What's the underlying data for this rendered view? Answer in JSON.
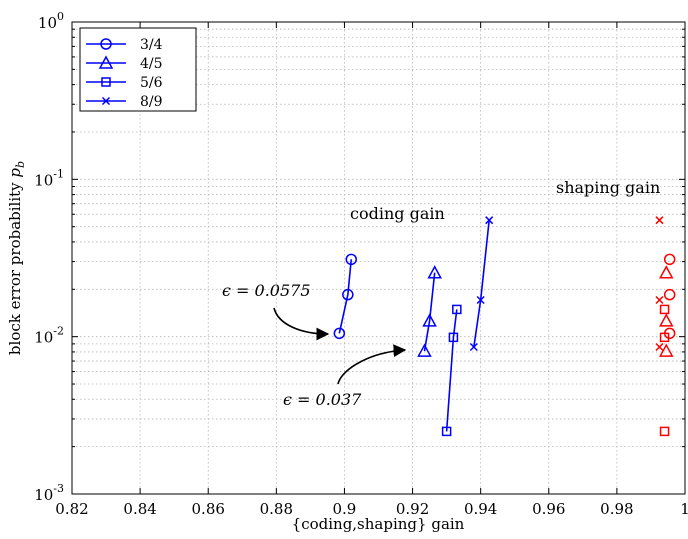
{
  "chart_data": {
    "type": "scatter",
    "title": "",
    "xlabel": "{coding,shaping} gain",
    "ylabel_text": "block error probability ",
    "ylabel_var": "p",
    "ylabel_sub": "b",
    "xlim": [
      0.82,
      1.0
    ],
    "ylim": [
      0.001,
      1
    ],
    "yscale": "log",
    "grid": true,
    "legend_position": "top-left",
    "x_ticks": [
      "0.82",
      "0.84",
      "0.86",
      "0.88",
      "0.9",
      "0.92",
      "0.94",
      "0.96",
      "0.98",
      "1"
    ],
    "y_ticks": [
      {
        "base": "10",
        "exp": "0",
        "value": 1
      },
      {
        "base": "10",
        "exp": "-1",
        "value": 0.1
      },
      {
        "base": "10",
        "exp": "-2",
        "value": 0.01
      },
      {
        "base": "10",
        "exp": "-3",
        "value": 0.001
      }
    ],
    "series": [
      {
        "name": "3/4",
        "marker": "circle",
        "color": "#0000ff",
        "points": [
          [
            0.8985,
            0.0105
          ],
          [
            0.901,
            0.0185
          ],
          [
            0.902,
            0.031
          ]
        ]
      },
      {
        "name": "4/5",
        "marker": "triangle",
        "color": "#0000ff",
        "points": [
          [
            0.9235,
            0.0081
          ],
          [
            0.925,
            0.0126
          ],
          [
            0.9265,
            0.0255
          ]
        ]
      },
      {
        "name": "5/6",
        "marker": "square",
        "color": "#0000ff",
        "points": [
          [
            0.93,
            0.0025
          ],
          [
            0.932,
            0.0099
          ],
          [
            0.933,
            0.0149
          ]
        ]
      },
      {
        "name": "8/9",
        "marker": "x",
        "color": "#0000ff",
        "points": [
          [
            0.938,
            0.0086
          ],
          [
            0.94,
            0.0171
          ],
          [
            0.9425,
            0.055
          ]
        ]
      }
    ],
    "shaping_points": [
      {
        "marker": "circle",
        "color": "#ff0000",
        "points": [
          [
            0.9955,
            0.0105
          ],
          [
            0.9955,
            0.0185
          ],
          [
            0.9955,
            0.031
          ]
        ]
      },
      {
        "marker": "triangle",
        "color": "#ff0000",
        "points": [
          [
            0.9945,
            0.0081
          ],
          [
            0.9945,
            0.0126
          ],
          [
            0.9945,
            0.0255
          ]
        ]
      },
      {
        "marker": "square",
        "color": "#ff0000",
        "points": [
          [
            0.994,
            0.0025
          ],
          [
            0.994,
            0.0099
          ],
          [
            0.994,
            0.0149
          ]
        ]
      },
      {
        "marker": "x",
        "color": "#ff0000",
        "points": [
          [
            0.9925,
            0.0086
          ],
          [
            0.9925,
            0.0171
          ],
          [
            0.9925,
            0.055
          ]
        ]
      }
    ],
    "annotations": {
      "coding_gain": "coding gain",
      "shaping_gain": "shaping gain",
      "eps1": "ϵ = 0.0575",
      "eps2": "ϵ = 0.037"
    }
  }
}
